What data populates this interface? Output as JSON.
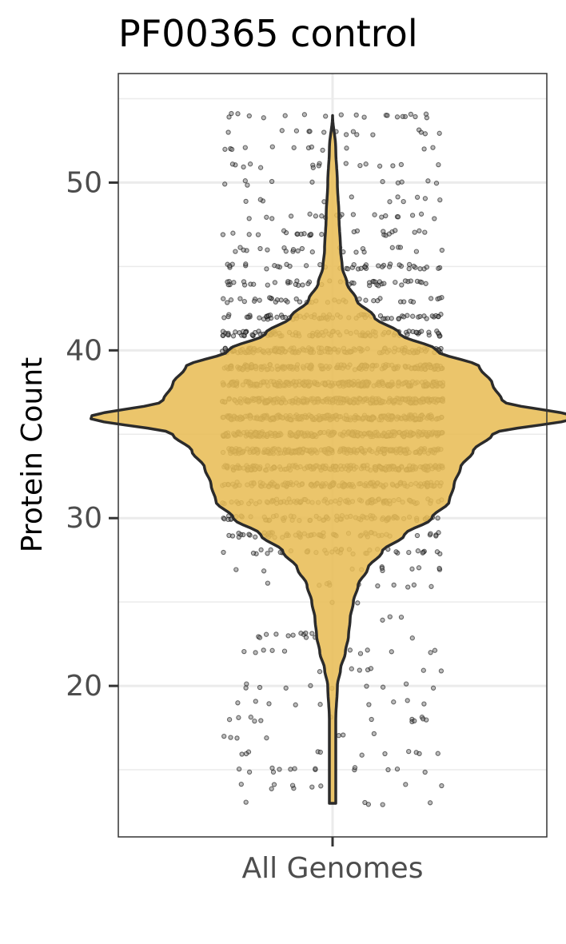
{
  "chart_data": {
    "type": "violin",
    "title": "PF00365 control",
    "ylabel": "Protein Count",
    "xlabel": "",
    "categories": [
      "All Genomes"
    ],
    "ylim": [
      11,
      56.5
    ],
    "yticks": [
      20,
      30,
      40,
      50
    ],
    "grid": true,
    "legend": "none",
    "violin": {
      "fill": "#E8BD56",
      "outline": "#2b2b2b",
      "y_min": 13,
      "y_max": 54,
      "profile": [
        [
          13,
          0.02
        ],
        [
          16,
          0.02
        ],
        [
          18,
          0.02
        ],
        [
          20,
          0.03
        ],
        [
          21,
          0.05
        ],
        [
          22,
          0.08
        ],
        [
          23,
          0.1
        ],
        [
          24,
          0.11
        ],
        [
          25,
          0.13
        ],
        [
          26,
          0.16
        ],
        [
          27,
          0.22
        ],
        [
          28,
          0.31
        ],
        [
          29,
          0.45
        ],
        [
          30,
          0.62
        ],
        [
          31,
          0.73
        ],
        [
          32,
          0.76
        ],
        [
          33,
          0.8
        ],
        [
          34,
          0.88
        ],
        [
          35,
          1.0
        ],
        [
          36,
          1.52
        ],
        [
          37,
          1.06
        ],
        [
          38,
          1.0
        ],
        [
          39,
          0.92
        ],
        [
          40,
          0.65
        ],
        [
          41,
          0.42
        ],
        [
          42,
          0.26
        ],
        [
          43,
          0.15
        ],
        [
          44,
          0.09
        ],
        [
          45,
          0.06
        ],
        [
          46,
          0.05
        ],
        [
          48,
          0.04
        ],
        [
          50,
          0.03
        ],
        [
          52,
          0.02
        ],
        [
          54,
          0.0
        ]
      ]
    },
    "points": {
      "color": "#000000",
      "opacity": 0.4,
      "x_jitter": 0.5,
      "y_min": 12.8,
      "y_max": 54.5,
      "mode": 36,
      "integer_values": true
    }
  }
}
